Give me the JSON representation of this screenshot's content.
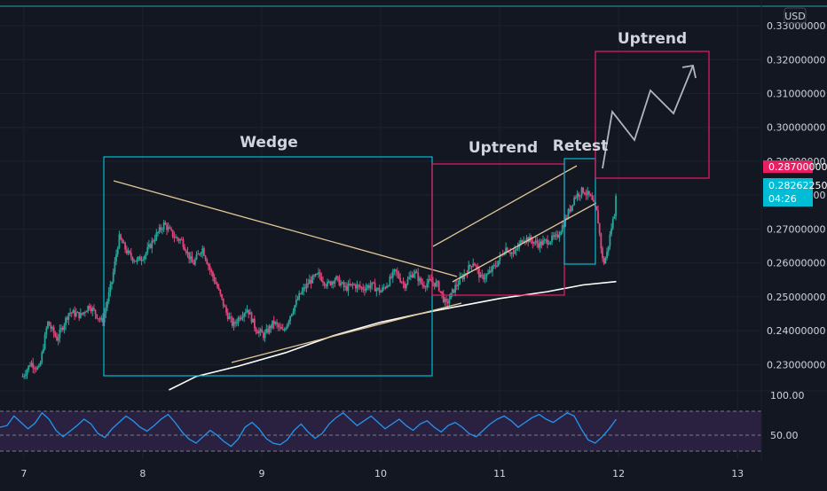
{
  "currency_label": "USD",
  "colors": {
    "background": "#131722",
    "grid": "#1e222d",
    "axis_text": "#d1d4dc",
    "up_candle": "#26a69a",
    "down_candle": "#e0457b",
    "ma_line": "#ffffff",
    "rsi_line": "#2196f3",
    "rsi_band": "#2a2140",
    "annotation_cyan": "#00bcd4",
    "annotation_pink": "#e91e63",
    "trendline": "#e0c896",
    "arrow": "#b2b5be",
    "price_tag_pink": "#e91e63",
    "price_tag_cyan": "#00bcd4",
    "top_border": "#26a69a"
  },
  "annotations": {
    "wedge_label": "Wedge",
    "uptrend_label_1": "Uptrend",
    "retest_label": "Retest",
    "uptrend_label_2": "Uptrend"
  },
  "price_tags": {
    "pink_value": "0.28700000",
    "cyan_value": "0.28262250",
    "cyan_time": "04:26"
  },
  "chart_data": [
    {
      "type": "candlestick",
      "title": "",
      "x_ticks": [
        "7",
        "8",
        "9",
        "10",
        "11",
        "12",
        "13"
      ],
      "y_ticks": [
        "0.23000000",
        "0.24000000",
        "0.25000000",
        "0.26000000",
        "0.27000000",
        "0.28000000",
        "0.29000000",
        "0.30000000",
        "0.31000000",
        "0.32000000",
        "0.33000000"
      ],
      "ylim": [
        0.2225,
        0.3355
      ],
      "xlim": [
        6.8,
        13.2
      ],
      "close_path": [
        [
          6.99,
          0.2265
        ],
        [
          7.06,
          0.2305
        ],
        [
          7.13,
          0.2285
        ],
        [
          7.2,
          0.2425
        ],
        [
          7.28,
          0.2375
        ],
        [
          7.38,
          0.2455
        ],
        [
          7.48,
          0.2445
        ],
        [
          7.55,
          0.2475
        ],
        [
          7.66,
          0.2425
        ],
        [
          7.74,
          0.2545
        ],
        [
          7.8,
          0.2675
        ],
        [
          7.88,
          0.2625
        ],
        [
          7.95,
          0.2605
        ],
        [
          8.02,
          0.2625
        ],
        [
          8.1,
          0.2675
        ],
        [
          8.18,
          0.2715
        ],
        [
          8.27,
          0.2675
        ],
        [
          8.33,
          0.2665
        ],
        [
          8.42,
          0.2595
        ],
        [
          8.5,
          0.2645
        ],
        [
          8.57,
          0.2575
        ],
        [
          8.62,
          0.2535
        ],
        [
          8.7,
          0.2455
        ],
        [
          8.76,
          0.2415
        ],
        [
          8.82,
          0.2445
        ],
        [
          8.88,
          0.2465
        ],
        [
          8.95,
          0.2405
        ],
        [
          9.02,
          0.2385
        ],
        [
          9.1,
          0.2425
        ],
        [
          9.18,
          0.2395
        ],
        [
          9.25,
          0.2455
        ],
        [
          9.32,
          0.2505
        ],
        [
          9.4,
          0.2545
        ],
        [
          9.48,
          0.2565
        ],
        [
          9.55,
          0.2535
        ],
        [
          9.62,
          0.2555
        ],
        [
          9.7,
          0.2525
        ],
        [
          9.77,
          0.2535
        ],
        [
          9.85,
          0.2525
        ],
        [
          9.92,
          0.2535
        ],
        [
          10.0,
          0.2515
        ],
        [
          10.07,
          0.2545
        ],
        [
          10.12,
          0.2575
        ],
        [
          10.2,
          0.2535
        ],
        [
          10.28,
          0.2575
        ],
        [
          10.35,
          0.2535
        ],
        [
          10.42,
          0.2545
        ],
        [
          10.48,
          0.2535
        ],
        [
          10.55,
          0.2475
        ],
        [
          10.62,
          0.2525
        ],
        [
          10.7,
          0.2565
        ],
        [
          10.78,
          0.2605
        ],
        [
          10.84,
          0.2555
        ],
        [
          10.9,
          0.2565
        ],
        [
          10.97,
          0.2595
        ],
        [
          11.05,
          0.2645
        ],
        [
          11.12,
          0.2625
        ],
        [
          11.2,
          0.2675
        ],
        [
          11.27,
          0.2665
        ],
        [
          11.33,
          0.2655
        ],
        [
          11.4,
          0.2665
        ],
        [
          11.48,
          0.2675
        ],
        [
          11.55,
          0.2725
        ],
        [
          11.63,
          0.2795
        ],
        [
          11.7,
          0.2815
        ],
        [
          11.76,
          0.2795
        ],
        [
          11.82,
          0.2745
        ],
        [
          11.85,
          0.2655
        ],
        [
          11.87,
          0.2595
        ],
        [
          11.9,
          0.2625
        ],
        [
          11.94,
          0.2705
        ],
        [
          11.97,
          0.2755
        ],
        [
          11.98,
          0.2826
        ]
      ],
      "moving_average": [
        [
          8.22,
          0.2225
        ],
        [
          8.45,
          0.2265
        ],
        [
          8.8,
          0.2295
        ],
        [
          9.2,
          0.2335
        ],
        [
          9.6,
          0.2385
        ],
        [
          10.0,
          0.2425
        ],
        [
          10.4,
          0.2455
        ],
        [
          10.7,
          0.2475
        ],
        [
          11.0,
          0.2495
        ],
        [
          11.4,
          0.2515
        ],
        [
          11.7,
          0.2535
        ],
        [
          11.98,
          0.2545
        ]
      ]
    },
    {
      "type": "line",
      "title": "",
      "y_ticks": [
        "100.00",
        "50.00"
      ],
      "ylim": [
        20,
        100
      ],
      "overbought": 80,
      "oversold": 30,
      "midline": 50,
      "values_x_start": 6.8,
      "values_x_end": 11.98,
      "values": [
        60,
        62,
        74,
        66,
        58,
        65,
        78,
        70,
        56,
        48,
        55,
        62,
        70,
        64,
        52,
        47,
        58,
        66,
        74,
        68,
        60,
        55,
        62,
        70,
        76,
        66,
        54,
        45,
        40,
        48,
        56,
        50,
        42,
        36,
        45,
        60,
        66,
        58,
        46,
        40,
        38,
        44,
        56,
        64,
        54,
        46,
        52,
        64,
        72,
        78,
        70,
        62,
        68,
        74,
        66,
        58,
        64,
        70,
        62,
        56,
        64,
        68,
        60,
        54,
        62,
        66,
        60,
        52,
        48,
        56,
        64,
        70,
        74,
        68,
        60,
        66,
        72,
        76,
        70,
        66,
        72,
        78,
        74,
        58,
        44,
        40,
        48,
        58,
        70
      ]
    }
  ]
}
